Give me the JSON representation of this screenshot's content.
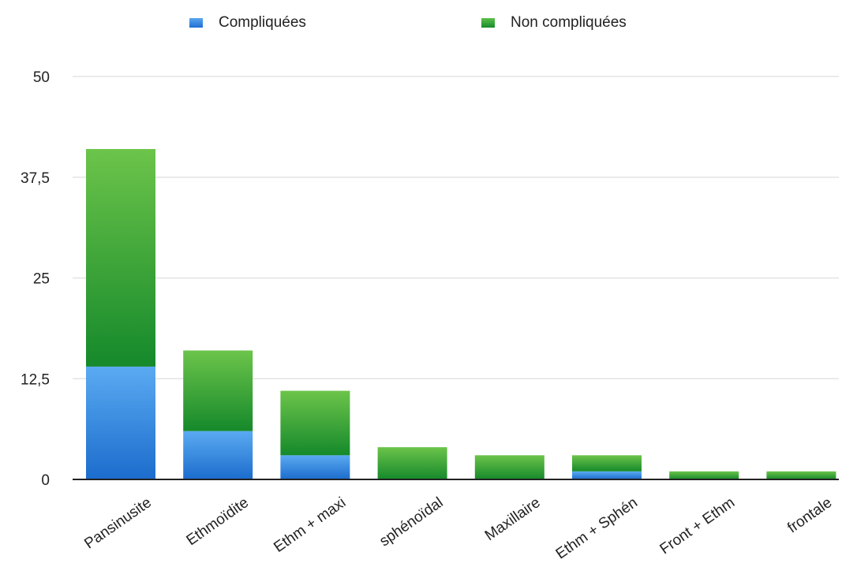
{
  "chart_data": {
    "type": "bar",
    "stacked": true,
    "categories": [
      "Pansinusite",
      "Ethmoïdite",
      "Ethm + maxi",
      "sphénoïdal",
      "Maxillaire",
      "Ethm + Sphén",
      "Front + Ethm",
      "frontale"
    ],
    "series": [
      {
        "name": "Compliquées",
        "color": "#3a8de6",
        "values": [
          14,
          6,
          3,
          0,
          0,
          1,
          0,
          0
        ]
      },
      {
        "name": "Non compliquées",
        "color": "#2e9e3a",
        "values": [
          27,
          10,
          8,
          4,
          3,
          2,
          1,
          1
        ]
      }
    ],
    "ylim": [
      0,
      50
    ],
    "yticks": [
      0,
      12.5,
      25,
      37.5,
      50
    ],
    "ytick_labels": [
      "0",
      "12,5",
      "25",
      "37,5",
      "50"
    ],
    "title": "",
    "xlabel": "",
    "ylabel": "",
    "legend_position": "top",
    "grid": true
  }
}
